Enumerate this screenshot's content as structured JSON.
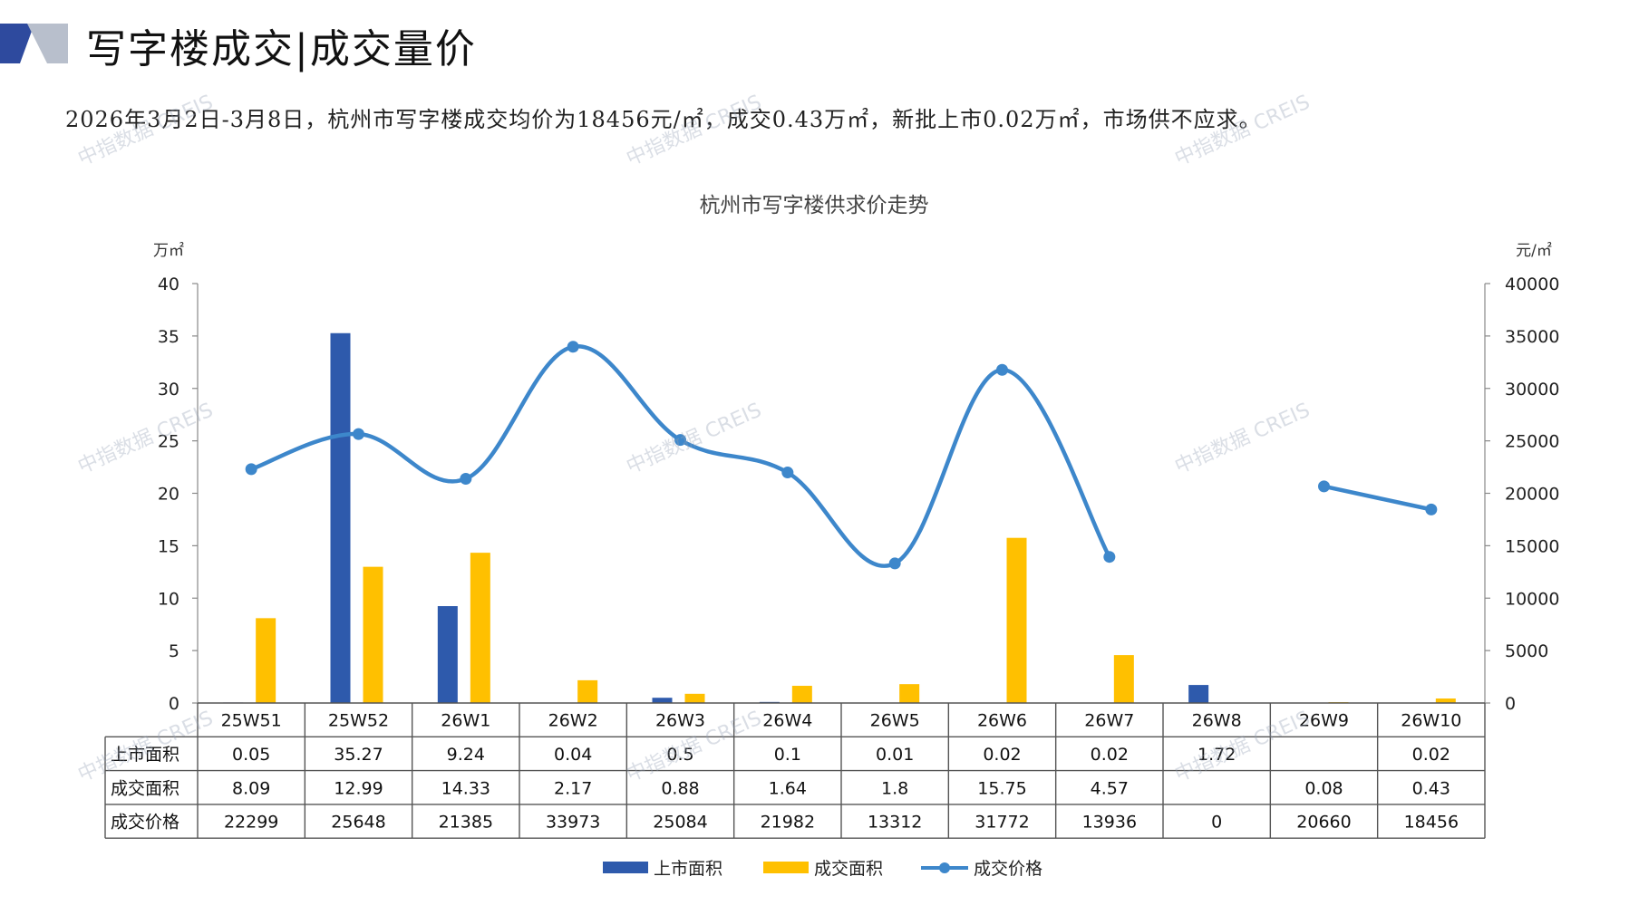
{
  "header": {
    "title": "写字楼成交|成交量价",
    "summary": "2026年3月2日-3月8日，杭州市写字楼成交均价为18456元/㎡，成交0.43万㎡，新批上市0.02万㎡，市场供不应求。"
  },
  "watermark_text": "中指数据 CREIS",
  "colors": {
    "supply": "#2E5AAC",
    "deal_area": "#FFC000",
    "price": "#3D87CB",
    "logo_dark": "#2E4A9E",
    "logo_light": "#B8BFCC"
  },
  "chart_data": {
    "type": "bar",
    "title": "杭州市写字楼供求价走势",
    "y_left_unit": "万㎡",
    "y_right_unit": "元/㎡",
    "ylim_left": [
      0,
      40
    ],
    "ylim_right": [
      0,
      40000
    ],
    "y_left_ticks": [
      "0",
      "5",
      "10",
      "15",
      "20",
      "25",
      "30",
      "35",
      "40"
    ],
    "y_right_ticks": [
      "0",
      "5000",
      "10000",
      "15000",
      "20000",
      "25000",
      "30000",
      "35000",
      "40000"
    ],
    "categories": [
      "25W51",
      "25W52",
      "26W1",
      "26W2",
      "26W3",
      "26W4",
      "26W5",
      "26W6",
      "26W7",
      "26W8",
      "26W9",
      "26W10"
    ],
    "series": [
      {
        "name": "上市面积",
        "kind": "bar",
        "axis": "left",
        "values": [
          0.05,
          35.27,
          9.24,
          0.04,
          0.5,
          0.1,
          0.01,
          0.02,
          0.02,
          1.72,
          null,
          0.02
        ],
        "labels": [
          "0.05",
          "35.27",
          "9.24",
          "0.04",
          "0.5",
          "0.1",
          "0.01",
          "0.02",
          "0.02",
          "1.72",
          "",
          "0.02"
        ]
      },
      {
        "name": "成交面积",
        "kind": "bar",
        "axis": "left",
        "values": [
          8.09,
          12.99,
          14.33,
          2.17,
          0.88,
          1.64,
          1.8,
          15.75,
          4.57,
          null,
          0.08,
          0.43
        ],
        "labels": [
          "8.09",
          "12.99",
          "14.33",
          "2.17",
          "0.88",
          "1.64",
          "1.8",
          "15.75",
          "4.57",
          "",
          "0.08",
          "0.43"
        ]
      },
      {
        "name": "成交价格",
        "kind": "line",
        "axis": "right",
        "values": [
          22299,
          25648,
          21385,
          33973,
          25084,
          21982,
          13312,
          31772,
          13936,
          0,
          20660,
          18456
        ],
        "labels": [
          "22299",
          "25648",
          "21385",
          "33973",
          "25084",
          "21982",
          "13312",
          "31772",
          "13936",
          "0",
          "20660",
          "18456"
        ]
      }
    ],
    "legend_position": "bottom",
    "grid": false,
    "table_below": true
  }
}
